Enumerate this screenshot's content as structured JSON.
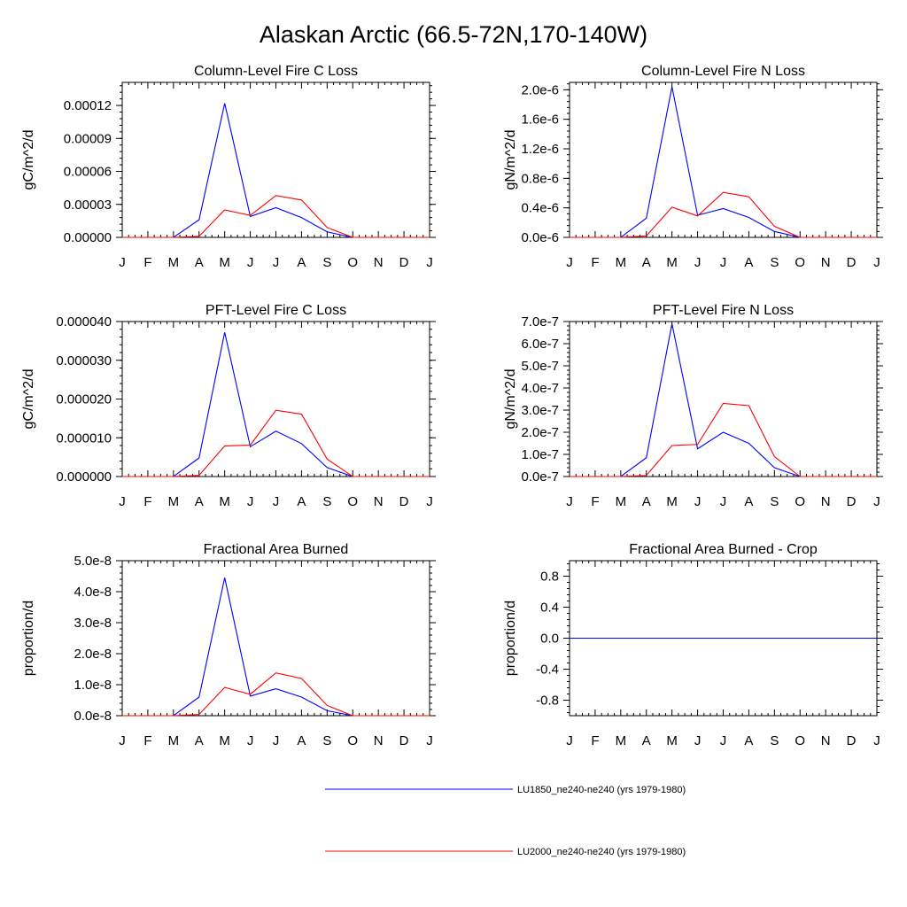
{
  "title": "Alaskan Arctic (66.5-72N,170-140W)",
  "colors": {
    "series_1": "#0000ff",
    "series_2": "#ff0000"
  },
  "legend": [
    {
      "label": "LU1850_ne240-ne240 (yrs 1979-1980)",
      "color": "#0000ff"
    },
    {
      "label": "LU2000_ne240-ne240 (yrs 1979-1980)",
      "color": "#ff0000"
    }
  ],
  "chart_data": [
    {
      "type": "line",
      "title": "Column-Level Fire C Loss",
      "ylabel": "gC/m^2/d",
      "categories": [
        "J",
        "F",
        "M",
        "A",
        "M",
        "J",
        "J",
        "A",
        "S",
        "O",
        "N",
        "D",
        "J"
      ],
      "ylim": [
        0,
        0.000141
      ],
      "yticks": [
        0,
        3e-05,
        6e-05,
        9e-05,
        0.00012
      ],
      "ytick_labels": [
        "0.00000",
        "0.00003",
        "0.00006",
        "0.00009",
        "0.00012"
      ],
      "series": [
        {
          "name": "LU1850_ne240-ne240 (yrs 1979-1980)",
          "color": "#0000ff",
          "values": [
            0,
            0,
            0,
            1.6e-05,
            0.000122,
            1.9e-05,
            2.7e-05,
            1.8e-05,
            5e-06,
            0,
            0,
            0,
            0
          ]
        },
        {
          "name": "LU2000_ne240-ne240 (yrs 1979-1980)",
          "color": "#ff0000",
          "values": [
            0,
            0,
            0,
            1e-06,
            2.5e-05,
            2e-05,
            3.8e-05,
            3.4e-05,
            9e-06,
            0,
            0,
            0,
            0
          ]
        }
      ]
    },
    {
      "type": "line",
      "title": "Column-Level Fire N Loss",
      "ylabel": "gN/m^2/d",
      "categories": [
        "J",
        "F",
        "M",
        "A",
        "M",
        "J",
        "J",
        "A",
        "S",
        "O",
        "N",
        "D",
        "J"
      ],
      "ylim": [
        0,
        2.1e-06
      ],
      "yticks": [
        0,
        4e-07,
        8e-07,
        1.2e-06,
        1.6e-06,
        2e-06
      ],
      "ytick_labels": [
        "0.0e-6",
        "0.4e-6",
        "0.8e-6",
        "1.2e-6",
        "1.6e-6",
        "2.0e-6"
      ],
      "series": [
        {
          "name": "LU1850_ne240-ne240 (yrs 1979-1980)",
          "color": "#0000ff",
          "values": [
            0,
            0,
            0,
            2.6e-07,
            2.04e-06,
            3e-07,
            3.9e-07,
            2.7e-07,
            8e-08,
            0,
            0,
            0,
            0
          ]
        },
        {
          "name": "LU2000_ne240-ne240 (yrs 1979-1980)",
          "color": "#ff0000",
          "values": [
            0,
            0,
            0,
            2e-08,
            4.1e-07,
            2.9e-07,
            6.1e-07,
            5.5e-07,
            1.5e-07,
            0,
            0,
            0,
            0
          ]
        }
      ]
    },
    {
      "type": "line",
      "title": "PFT-Level Fire C Loss",
      "ylabel": "gC/m^2/d",
      "categories": [
        "J",
        "F",
        "M",
        "A",
        "M",
        "J",
        "J",
        "A",
        "S",
        "O",
        "N",
        "D",
        "J"
      ],
      "ylim": [
        0,
        4e-05
      ],
      "yticks": [
        0,
        1e-05,
        2e-05,
        3e-05,
        4e-05
      ],
      "ytick_labels": [
        "0.000000",
        "0.000010",
        "0.000020",
        "0.000030",
        "0.000040"
      ],
      "series": [
        {
          "name": "LU1850_ne240-ne240 (yrs 1979-1980)",
          "color": "#0000ff",
          "values": [
            0,
            0,
            0,
            4.8e-06,
            3.72e-05,
            7.7e-06,
            1.17e-05,
            8.5e-06,
            2.3e-06,
            0,
            0,
            0,
            0
          ]
        },
        {
          "name": "LU2000_ne240-ne240 (yrs 1979-1980)",
          "color": "#ff0000",
          "values": [
            0,
            0,
            0,
            3e-07,
            7.9e-06,
            8.1e-06,
            1.71e-05,
            1.61e-05,
            4.5e-06,
            0,
            0,
            0,
            0
          ]
        }
      ]
    },
    {
      "type": "line",
      "title": "PFT-Level Fire N Loss",
      "ylabel": "gN/m^2/d",
      "categories": [
        "J",
        "F",
        "M",
        "A",
        "M",
        "J",
        "J",
        "A",
        "S",
        "O",
        "N",
        "D",
        "J"
      ],
      "ylim": [
        0,
        7e-07
      ],
      "yticks": [
        0,
        1e-07,
        2e-07,
        3e-07,
        4e-07,
        5e-07,
        6e-07,
        7e-07
      ],
      "ytick_labels": [
        "0.0e-7",
        "1.0e-7",
        "2.0e-7",
        "3.0e-7",
        "4.0e-7",
        "5.0e-7",
        "6.0e-7",
        "7.0e-7"
      ],
      "series": [
        {
          "name": "LU1850_ne240-ne240 (yrs 1979-1980)",
          "color": "#0000ff",
          "values": [
            0,
            0,
            0,
            8.5e-08,
            6.9e-07,
            1.25e-07,
            2e-07,
            1.5e-07,
            4e-08,
            0,
            0,
            0,
            0
          ]
        },
        {
          "name": "LU2000_ne240-ne240 (yrs 1979-1980)",
          "color": "#ff0000",
          "values": [
            0,
            0,
            0,
            5e-09,
            1.4e-07,
            1.45e-07,
            3.3e-07,
            3.2e-07,
            9e-08,
            0,
            0,
            0,
            0
          ]
        }
      ]
    },
    {
      "type": "line",
      "title": "Fractional Area Burned",
      "ylabel": "proportion/d",
      "categories": [
        "J",
        "F",
        "M",
        "A",
        "M",
        "J",
        "J",
        "A",
        "S",
        "O",
        "N",
        "D",
        "J"
      ],
      "ylim": [
        0,
        5e-08
      ],
      "yticks": [
        0,
        1e-08,
        2e-08,
        3e-08,
        4e-08,
        5e-08
      ],
      "ytick_labels": [
        "0.0e-8",
        "1.0e-8",
        "2.0e-8",
        "3.0e-8",
        "4.0e-8",
        "5.0e-8"
      ],
      "series": [
        {
          "name": "LU1850_ne240-ne240 (yrs 1979-1980)",
          "color": "#0000ff",
          "values": [
            0,
            0,
            0,
            6e-09,
            4.45e-08,
            6.3e-09,
            8.7e-09,
            6e-09,
            1.6e-09,
            0,
            0,
            0,
            0
          ]
        },
        {
          "name": "LU2000_ne240-ne240 (yrs 1979-1980)",
          "color": "#ff0000",
          "values": [
            0,
            0,
            0,
            4e-10,
            9.1e-09,
            6.9e-09,
            1.38e-08,
            1.2e-08,
            3.3e-09,
            0,
            0,
            0,
            0
          ]
        }
      ]
    },
    {
      "type": "line",
      "title": "Fractional Area Burned - Crop",
      "ylabel": "proportion/d",
      "categories": [
        "J",
        "F",
        "M",
        "A",
        "M",
        "J",
        "J",
        "A",
        "S",
        "O",
        "N",
        "D",
        "J"
      ],
      "ylim": [
        -1,
        1
      ],
      "yticks": [
        -0.8,
        -0.4,
        0,
        0.4,
        0.8
      ],
      "ytick_labels": [
        "-0.8",
        "-0.4",
        "0.0",
        "0.4",
        "0.8"
      ],
      "series": [
        {
          "name": "LU2000_ne240-ne240 (yrs 1979-1980)",
          "color": "#ff0000",
          "values": [
            0,
            0,
            0,
            0,
            0,
            0,
            0,
            0,
            0,
            0,
            0,
            0,
            0
          ]
        },
        {
          "name": "LU1850_ne240-ne240 (yrs 1979-1980)",
          "color": "#0000ff",
          "values": [
            0,
            0,
            0,
            0,
            0,
            0,
            0,
            0,
            0,
            0,
            0,
            0,
            0
          ]
        }
      ]
    }
  ]
}
